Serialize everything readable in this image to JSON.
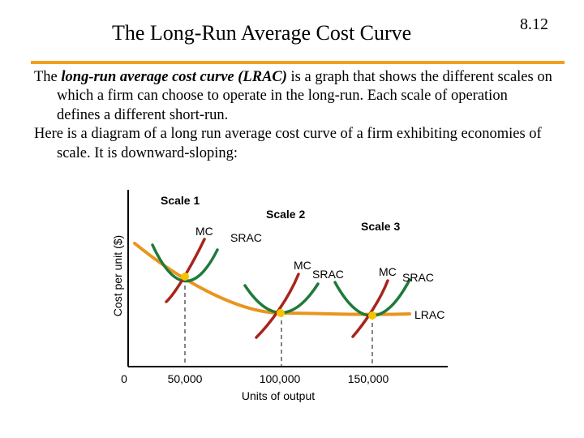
{
  "slide": {
    "title": "The Long-Run Average Cost Curve",
    "number": "8.12"
  },
  "body": {
    "p1_before": "The ",
    "p1_term": "long-run average cost curve (LRAC)",
    "p1_after": " is a graph that shows the different scales on which a firm can choose to operate in the long-run.  Each scale of operation defines a different short-run.",
    "p2": "Here is a diagram of a long run average cost curve of a firm exhibiting economies of scale. It is downward-sloping:"
  },
  "figure": {
    "y_axis_label": "Cost per unit ($)",
    "x_axis_label": "Units of output",
    "x_ticks": [
      "0",
      "50,000",
      "100,000",
      "150,000"
    ],
    "scale_labels": [
      "Scale 1",
      "Scale 2",
      "Scale 3"
    ],
    "mc_label": "MC",
    "srac_label": "SRAC",
    "lrac_label": "LRAC",
    "colors": {
      "lrac": "#e8951e",
      "srac": "#1f7a3a",
      "mc": "#a8241c",
      "point": "#f5c400",
      "guide": "#333333"
    }
  }
}
